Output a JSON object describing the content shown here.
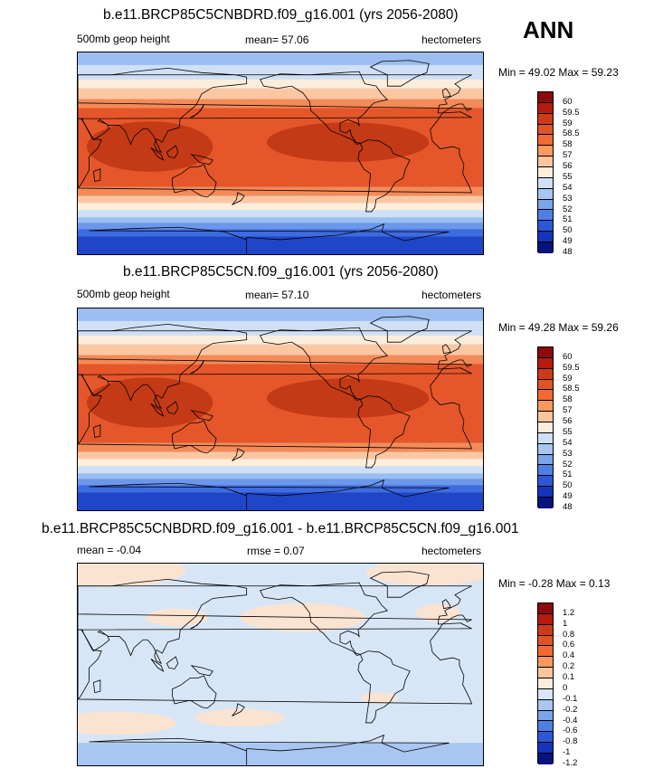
{
  "season": "ANN",
  "panels": [
    {
      "title": "b.e11.BRCP85C5CNBDRD.f09_g16.001 (yrs 2056-2080)",
      "left_label": "500mb geop height",
      "center_label": "mean=  57.06",
      "right_label": "hectometers",
      "minmax": "Min =  49.02 Max =  59.23",
      "levels": [
        "60",
        "59.5",
        "59",
        "58.5",
        "58",
        "57",
        "56",
        "55",
        "54",
        "53",
        "52",
        "51",
        "50",
        "49",
        "48"
      ],
      "colors": [
        "#8c0a0a",
        "#b51c0d",
        "#cd3a17",
        "#e05424",
        "#ef6b33",
        "#f9985f",
        "#fcc59c",
        "#fdeedb",
        "#cfe0f6",
        "#a8c6f2",
        "#7aa5ec",
        "#4f7ee6",
        "#2c58d6",
        "#1435b8",
        "#06127e"
      ]
    },
    {
      "title": "b.e11.BRCP85C5CN.f09_g16.001 (yrs 2056-2080)",
      "left_label": "500mb geop height",
      "center_label": "mean=  57.10",
      "right_label": "hectometers",
      "minmax": "Min =  49.28 Max =  59.26",
      "levels": [
        "60",
        "59.5",
        "59",
        "58.5",
        "58",
        "57",
        "56",
        "55",
        "54",
        "53",
        "52",
        "51",
        "50",
        "49",
        "48"
      ],
      "colors": [
        "#8c0a0a",
        "#b51c0d",
        "#cd3a17",
        "#e05424",
        "#ef6b33",
        "#f9985f",
        "#fcc59c",
        "#fdeedb",
        "#cfe0f6",
        "#a8c6f2",
        "#7aa5ec",
        "#4f7ee6",
        "#2c58d6",
        "#1435b8",
        "#06127e"
      ]
    },
    {
      "title": "b.e11.BRCP85C5CNBDRD.f09_g16.001 - b.e11.BRCP85C5CN.f09_g16.001",
      "left_label": "mean =  -0.04",
      "center_label": "rmse =   0.07",
      "right_label": "hectometers",
      "minmax": "Min =  -0.28 Max =   0.13",
      "levels": [
        "1.2",
        "1",
        "0.8",
        "0.6",
        "0.4",
        "0.2",
        "0.1",
        "0",
        "-0.1",
        "-0.2",
        "-0.4",
        "-0.6",
        "-0.8",
        "-1",
        "-1.2"
      ],
      "colors": [
        "#8c0a0a",
        "#b51c0d",
        "#cd3a17",
        "#e05424",
        "#ef6b33",
        "#f9985f",
        "#fcc59c",
        "#fdeedb",
        "#d6e6f7",
        "#a8c6f2",
        "#7aa5ec",
        "#4f7ee6",
        "#2c58d6",
        "#1435b8",
        "#06127e"
      ]
    }
  ],
  "field_colors": {
    "hot": "#c43a16",
    "warm": "#e5572a",
    "mid": "#f48a57",
    "light": "#fbc7a3",
    "pale": "#fdeedb",
    "cool1": "#cfe0f6",
    "cool2": "#9dbdf0",
    "cool3": "#6b98ea",
    "cool4": "#3e6ce0",
    "cool5": "#1f46c9",
    "diff_bg": "#d6e6f7",
    "diff_warm": "#fbe3d2",
    "diff_cool": "#a8c6f2"
  }
}
